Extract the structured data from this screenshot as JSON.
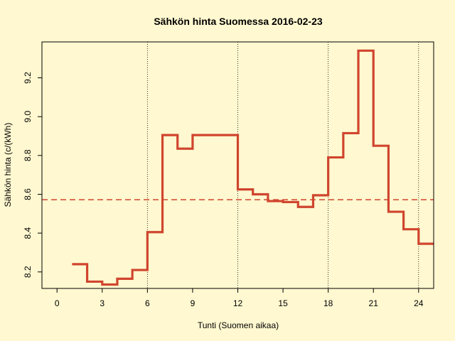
{
  "chart_data": {
    "type": "line",
    "title": "Sähkön hinta Suomessa 2016-02-23",
    "xlabel": "Tunti (Suomen aikaa)",
    "ylabel": "Sähkön hinta (c/(kWh)",
    "xlim": [
      -1,
      25
    ],
    "ylim": [
      8.115,
      9.385
    ],
    "x_ticks": [
      0,
      3,
      6,
      9,
      12,
      15,
      18,
      21,
      24
    ],
    "y_ticks": [
      8.2,
      8.4,
      8.6,
      8.8,
      9.0,
      9.2
    ],
    "y_tick_labels": [
      "8.2",
      "8.4",
      "8.6",
      "8.8",
      "9.0",
      "9.2"
    ],
    "step": "post",
    "series": [
      {
        "x": [
          1,
          2,
          3,
          4,
          5,
          6,
          7,
          8,
          9,
          10,
          11,
          12,
          13,
          14,
          15,
          16,
          17,
          18,
          19,
          20,
          21,
          22,
          23,
          24
        ],
        "values": [
          8.24,
          8.15,
          8.135,
          8.165,
          8.21,
          8.405,
          8.905,
          8.835,
          8.905,
          8.905,
          8.905,
          8.625,
          8.6,
          8.565,
          8.56,
          8.535,
          8.595,
          8.79,
          8.915,
          9.34,
          8.85,
          8.51,
          8.42,
          8.345
        ],
        "color": "#d0452e"
      }
    ],
    "mean_line": {
      "y": 8.572,
      "style": "dashed",
      "color": "#d0452e"
    },
    "vertical_gridlines_x": [
      6,
      12,
      18,
      24
    ],
    "grid": false,
    "legend": "none"
  }
}
